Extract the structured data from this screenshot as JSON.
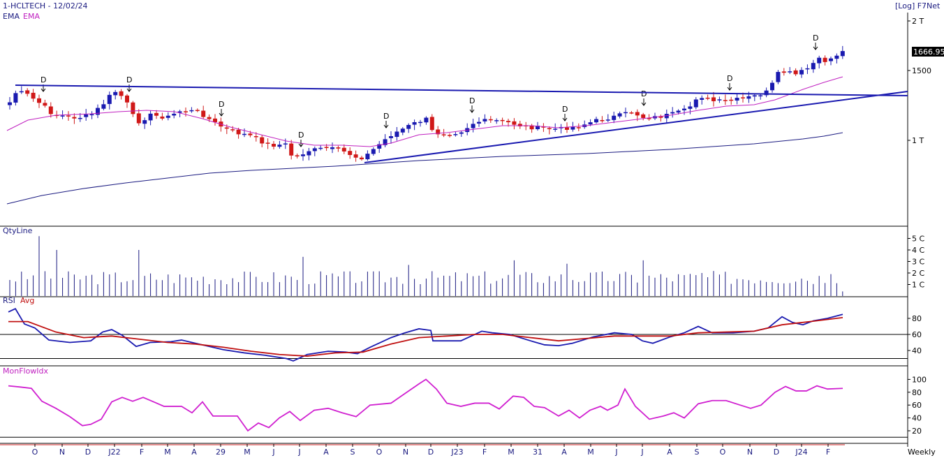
{
  "header": {
    "title": "1-HCLTECH - 12/02/24",
    "scale_label": "[Log] F7Net",
    "ema_label_1": "EMA",
    "ema_label_2": "EMA",
    "timeframe": "Weekly"
  },
  "colors": {
    "up_candle": "#1a1ab0",
    "down_candle": "#d01818",
    "ema_short": "#c020c0",
    "ema_long": "#1a1a80",
    "rsi": "#1a1ab0",
    "rsi_avg": "#c01010",
    "mfi": "#d020d0",
    "volume": "#1a1a80"
  },
  "chart_data": [
    {
      "type": "candlestick",
      "title": "1-HCLTECH - 12/02/24",
      "scale": "log",
      "last_price_label": "1666.95",
      "last_price": 1666.95,
      "y_ticks": [
        {
          "value": 1000,
          "label": "1 T"
        },
        {
          "value": 1500,
          "label": "1500"
        },
        {
          "value": 2000,
          "label": "2 T"
        }
      ],
      "ylim": [
        700,
        2100
      ],
      "x_month_labels": [
        "O",
        "N",
        "D",
        "J22",
        "F",
        "M",
        "A",
        "29",
        "M",
        "J",
        "J",
        "A",
        "S",
        "O",
        "N",
        "D",
        "J23",
        "F",
        "M",
        "31",
        "A",
        "M",
        "J",
        "J",
        "A",
        "S",
        "O",
        "N",
        "D",
        "J24",
        "F"
      ],
      "dividend_markers": [
        "D",
        "D",
        "D",
        "D",
        "D",
        "D",
        "D",
        "D",
        "D",
        "D"
      ],
      "note": "Weekly OHLC from approx. Sep 2021 to Feb 2024"
    },
    {
      "type": "bar",
      "title": "QtyLine",
      "y_ticks": [
        "1 C",
        "2 C",
        "3 C",
        "4 C",
        "5 C"
      ],
      "ylim": [
        0,
        5.6
      ]
    },
    {
      "type": "line",
      "title": "RSI",
      "series_labels": [
        "RSI",
        "Avg"
      ],
      "y_ticks": [
        40,
        60,
        80
      ],
      "reference_lines": [
        30,
        60
      ],
      "ylim": [
        22,
        93
      ]
    },
    {
      "type": "line",
      "title": "MonFlowIdx",
      "y_ticks": [
        20,
        40,
        60,
        80,
        100
      ],
      "reference_lines": [
        10
      ],
      "ylim": [
        8,
        104
      ]
    }
  ]
}
